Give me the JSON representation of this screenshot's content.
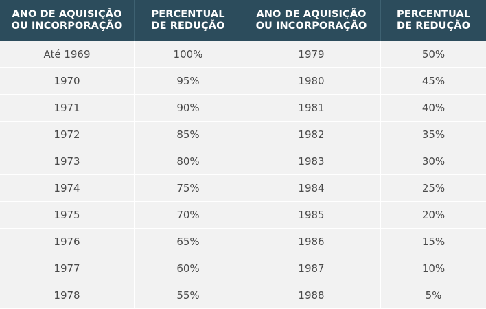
{
  "header": {
    "col1": [
      "ANO DE AQUISIÇÃO",
      "OU INCORPORAÇÃO"
    ],
    "col2": [
      "PERCENTUAL",
      "DE REDUÇÃO"
    ],
    "col3": [
      "ANO DE AQUISIÇÃO",
      "OU INCORPORAÇÃO"
    ],
    "col4": [
      "PERCENTUAL",
      "DE REDUÇÃO"
    ]
  },
  "rows": [
    [
      "Até 1969",
      "100%",
      "1979",
      "50%"
    ],
    [
      "1970",
      "95%",
      "1980",
      "45%"
    ],
    [
      "1971",
      "90%",
      "1981",
      "40%"
    ],
    [
      "1972",
      "85%",
      "1982",
      "35%"
    ],
    [
      "1973",
      "80%",
      "1983",
      "30%"
    ],
    [
      "1974",
      "75%",
      "1984",
      "25%"
    ],
    [
      "1975",
      "70%",
      "1985",
      "20%"
    ],
    [
      "1976",
      "65%",
      "1986",
      "15%"
    ],
    [
      "1977",
      "60%",
      "1987",
      "10%"
    ],
    [
      "1978",
      "55%",
      "1988",
      "5%"
    ]
  ],
  "colors": {
    "header_bg": "#2c4c5c",
    "header_text": "#ffffff",
    "row_bg": "#f2f2f2",
    "cell_text": "#4a4a4a",
    "divider": "#3a3a3a"
  }
}
